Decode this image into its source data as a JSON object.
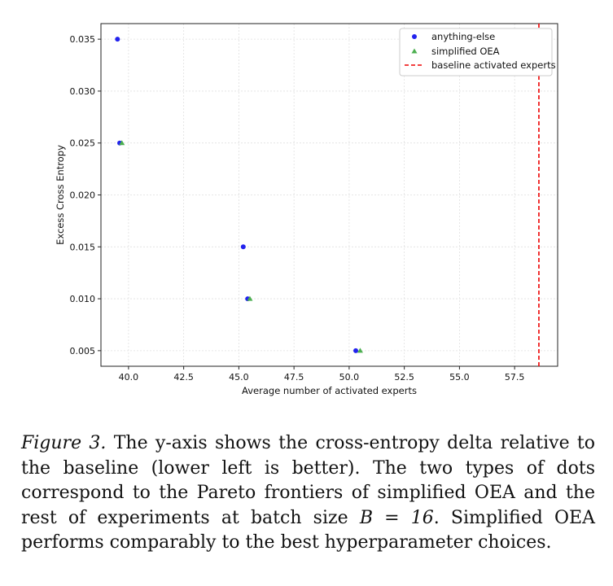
{
  "chart_data": {
    "type": "scatter",
    "xlabel": "Average number of activated experts",
    "ylabel": "Excess Cross Entropy",
    "xlim": [
      38.75,
      59.45
    ],
    "ylim": [
      0.0035,
      0.0365
    ],
    "x_ticks": [
      "40.0",
      "42.5",
      "45.0",
      "47.5",
      "50.0",
      "52.5",
      "55.0",
      "57.5"
    ],
    "y_ticks": [
      "0.005",
      "0.010",
      "0.015",
      "0.020",
      "0.025",
      "0.030",
      "0.035"
    ],
    "grid": true,
    "legend_position": "top-right",
    "series": [
      {
        "name": "anything-else",
        "marker": "circle",
        "color": "#2222ee",
        "x": [
          39.5,
          39.6,
          45.2,
          45.4,
          50.3
        ],
        "y": [
          0.035,
          0.025,
          0.015,
          0.01,
          0.005
        ]
      },
      {
        "name": "simplified OEA",
        "marker": "triangle",
        "color": "#4caf50",
        "x": [
          39.7,
          45.5,
          50.5
        ],
        "y": [
          0.025,
          0.01,
          0.005
        ]
      }
    ],
    "reference_lines": [
      {
        "name": "baseline activated experts",
        "orientation": "vertical",
        "x": 58.6,
        "style": "dashed",
        "color": "#ee0000"
      }
    ]
  },
  "caption": {
    "label": "Figure 3.",
    "text_before_math": " The y-axis shows the cross-entropy delta relative to the baseline (lower left is better). The two types of dots correspond to the Pareto frontiers of simplified OEA and the rest of experiments at batch size ",
    "math": "B = 16",
    "text_after_math": ". Simplified OEA performs comparably to the best hyperparameter choices."
  }
}
